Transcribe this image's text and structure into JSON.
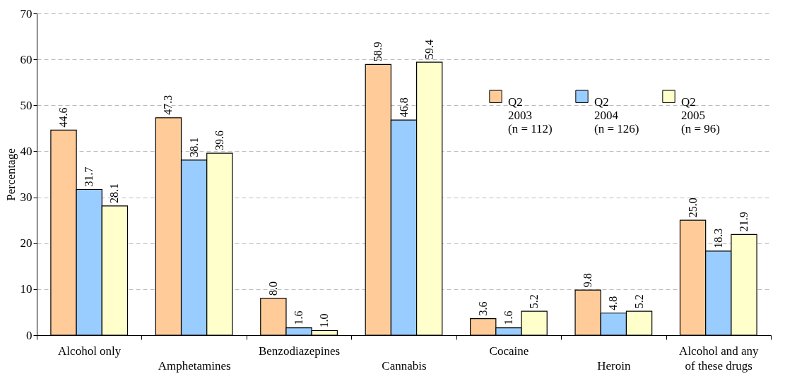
{
  "chart_data": {
    "type": "bar",
    "ylabel": "Percentage",
    "categories": [
      "Alcohol only",
      "Amphetamines",
      "Benzodiazepines",
      "Cannabis",
      "Cocaine",
      "Heroin",
      "Alcohol and any of these drugs"
    ],
    "series": [
      {
        "name": "Q2 2003 (n = 112)",
        "color": "#ffcc99",
        "values": [
          44.6,
          47.3,
          8.0,
          58.9,
          3.6,
          9.8,
          25.0
        ]
      },
      {
        "name": "Q2 2004 (n = 126)",
        "color": "#99ccff",
        "values": [
          31.7,
          38.1,
          1.6,
          46.8,
          1.6,
          4.8,
          18.3
        ]
      },
      {
        "name": "Q2 2005 (n = 96)",
        "color": "#ffffcc",
        "values": [
          28.1,
          39.6,
          1.0,
          59.4,
          5.2,
          5.2,
          21.9
        ]
      }
    ],
    "value_labels": [
      [
        "44.6",
        "47.3",
        "8.0",
        "58.9",
        "3.6",
        "9.8",
        "25.0"
      ],
      [
        "31.7",
        "38.1",
        "1.6",
        "46.8",
        "1.6",
        "4.8",
        "18.3"
      ],
      [
        "28.1",
        "39.6",
        "1.0",
        "59.4",
        "5.2",
        "5.2",
        "21.9"
      ]
    ],
    "ylim": [
      0,
      70
    ],
    "yticks": [
      0,
      10,
      20,
      30,
      40,
      50,
      60,
      70
    ],
    "grid": "y",
    "legend": "top right"
  }
}
